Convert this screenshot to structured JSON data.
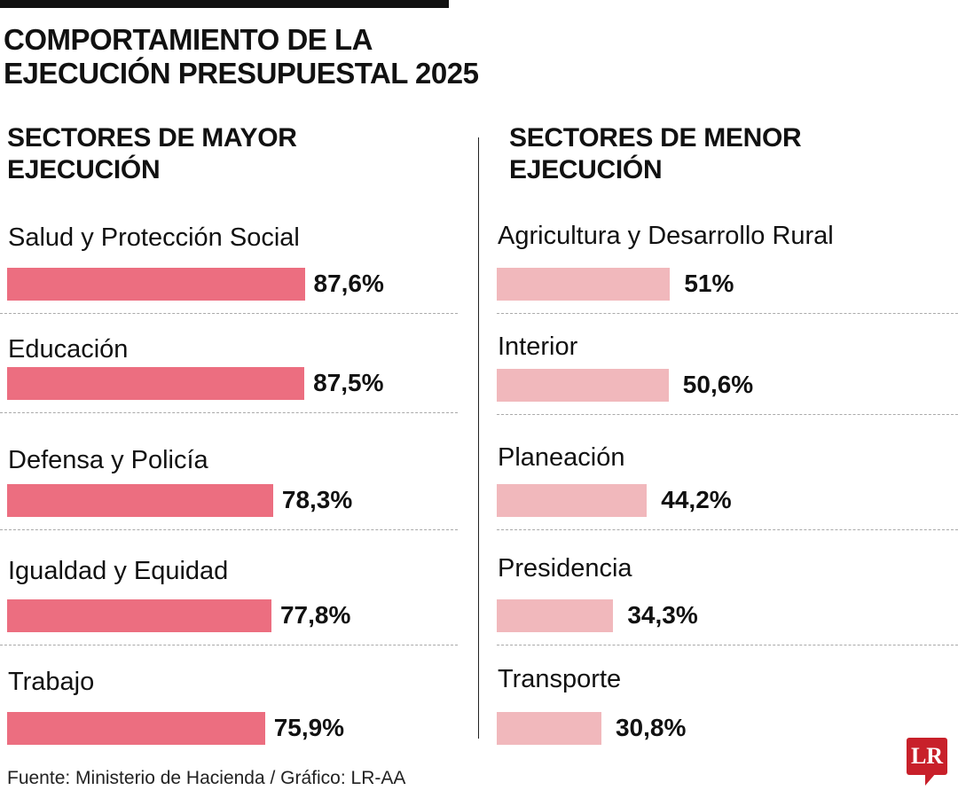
{
  "title_line1": "COMPORTAMIENTO DE LA",
  "title_line2": "EJECUCIÓN PRESUPUESTAL 2025",
  "source": "Fuente: Ministerio de Hacienda / Gráfico: LR-AA",
  "logo": "LR",
  "colors": {
    "high": "#ec6e80",
    "low": "#f1b8bc",
    "logo": "#c8202a"
  },
  "chart_data": [
    {
      "type": "bar",
      "orientation": "horizontal",
      "title_line1": "SECTORES DE MAYOR",
      "title_line2": "EJECUCIÓN",
      "categories": [
        "Salud y Protección Social",
        "Educación",
        "Defensa y Policía",
        "Igualdad y Equidad",
        "Trabajo"
      ],
      "values": [
        87.6,
        87.5,
        78.3,
        77.8,
        75.9
      ],
      "labels": [
        "87,6%",
        "87,5%",
        "78,3%",
        "77,8%",
        "75,9%"
      ],
      "unit": "%",
      "xlim": [
        0,
        100
      ],
      "grid": false
    },
    {
      "type": "bar",
      "orientation": "horizontal",
      "title_line1": "SECTORES DE MENOR",
      "title_line2": "EJECUCIÓN",
      "categories": [
        "Agricultura y Desarrollo Rural",
        "Interior",
        "Planeación",
        "Presidencia",
        "Transporte"
      ],
      "values": [
        51,
        50.6,
        44.2,
        34.3,
        30.8
      ],
      "labels": [
        "51%",
        "50,6%",
        "44,2%",
        "34,3%",
        "30,8%"
      ],
      "unit": "%",
      "xlim": [
        0,
        100
      ],
      "grid": false
    }
  ]
}
